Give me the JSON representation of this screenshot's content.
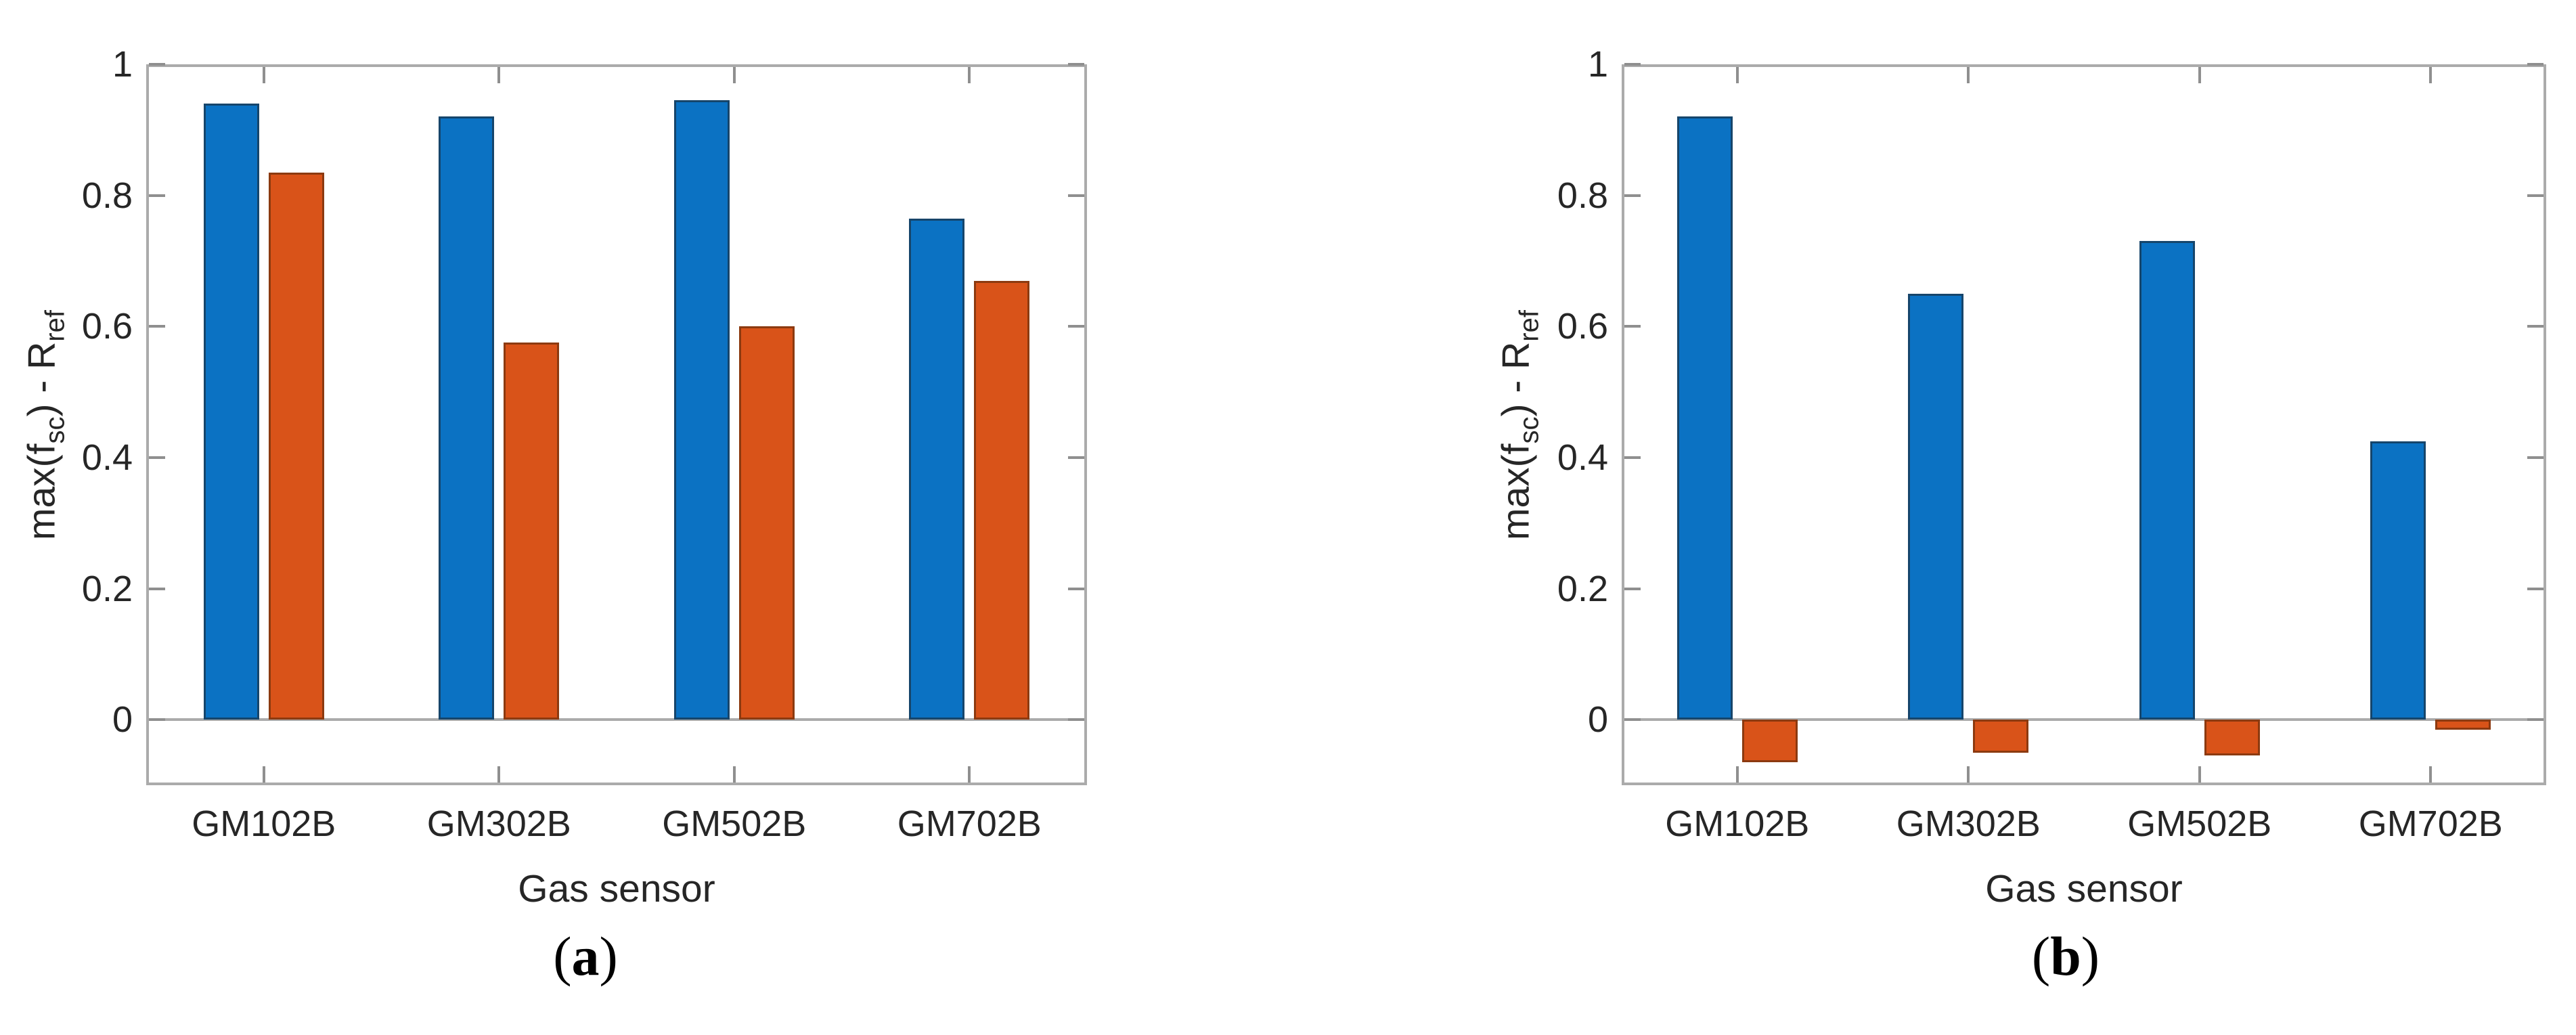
{
  "figure": {
    "panels": [
      {
        "caption_prefix": "(",
        "caption_letter": "a",
        "caption_suffix": ")"
      },
      {
        "caption_prefix": "(",
        "caption_letter": "b",
        "caption_suffix": ")"
      }
    ]
  },
  "colors": {
    "blue": "#0B72C3",
    "orange": "#D95319",
    "blue_edge": "#16456B",
    "orange_edge": "#8C3A10",
    "axis_box": "#ABABAB",
    "tick": "#8F8F8F",
    "text": "#262626"
  },
  "chart_data": [
    {
      "type": "bar",
      "caption": "(a)",
      "categories": [
        "GM102B",
        "GM302B",
        "GM502B",
        "GM702B"
      ],
      "series": [
        {
          "name": "blue",
          "color": "#0B72C3",
          "values": [
            0.94,
            0.92,
            0.945,
            0.765
          ]
        },
        {
          "name": "orange",
          "color": "#D95319",
          "values": [
            0.835,
            0.575,
            0.6,
            0.67
          ]
        }
      ],
      "xlabel": "Gas sensor",
      "ylabel": "max(f_sc) - R_ref",
      "ylabel_parts": [
        {
          "text": "max(f",
          "sub": false
        },
        {
          "text": "sc",
          "sub": true
        },
        {
          "text": ") - R",
          "sub": false
        },
        {
          "text": "ref",
          "sub": true
        }
      ],
      "ylim": [
        -0.1,
        1
      ],
      "yticks": [
        0,
        0.2,
        0.4,
        0.6,
        0.8,
        1
      ],
      "ytick_labels": [
        "0",
        "0.2",
        "0.4",
        "0.6",
        "0.8",
        "1"
      ],
      "grid": false,
      "legend_position": "none"
    },
    {
      "type": "bar",
      "caption": "(b)",
      "categories": [
        "GM102B",
        "GM302B",
        "GM502B",
        "GM702B"
      ],
      "series": [
        {
          "name": "blue",
          "color": "#0B72C3",
          "values": [
            0.92,
            0.65,
            0.73,
            0.425
          ]
        },
        {
          "name": "orange",
          "color": "#D95319",
          "values": [
            -0.065,
            -0.05,
            -0.055,
            -0.015
          ]
        }
      ],
      "xlabel": "Gas sensor",
      "ylabel": "max(f_sc) - R_ref",
      "ylabel_parts": [
        {
          "text": "max(f",
          "sub": false
        },
        {
          "text": "sc",
          "sub": true
        },
        {
          "text": ") - R",
          "sub": false
        },
        {
          "text": "ref",
          "sub": true
        }
      ],
      "ylim": [
        -0.1,
        1
      ],
      "yticks": [
        0,
        0.2,
        0.4,
        0.6,
        0.8,
        1
      ],
      "ytick_labels": [
        "0",
        "0.2",
        "0.4",
        "0.6",
        "0.8",
        "1"
      ],
      "grid": false,
      "legend_position": "none"
    }
  ]
}
